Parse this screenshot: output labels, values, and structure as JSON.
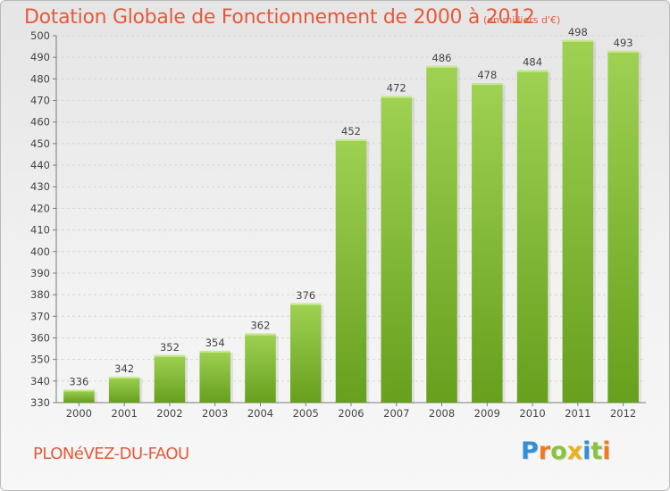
{
  "chart_data": {
    "type": "bar",
    "title": "Dotation Globale de Fonctionnement de 2000 à 2012",
    "unit_label": "(en milliers d'€)",
    "categories": [
      "2000",
      "2001",
      "2002",
      "2003",
      "2004",
      "2005",
      "2006",
      "2007",
      "2008",
      "2009",
      "2010",
      "2011",
      "2012"
    ],
    "values": [
      336,
      342,
      352,
      354,
      362,
      376,
      452,
      472,
      486,
      478,
      484,
      498,
      493
    ],
    "value_labels": [
      "336",
      "342",
      "352",
      "354",
      "362",
      "376",
      "452",
      "472",
      "486",
      "478",
      "484",
      "498",
      "493"
    ],
    "ylim": [
      330,
      500
    ],
    "yticks": [
      "330",
      "340",
      "350",
      "360",
      "370",
      "380",
      "390",
      "400",
      "410",
      "420",
      "430",
      "440",
      "450",
      "460",
      "470",
      "480",
      "490",
      "500"
    ],
    "grid": true,
    "bar_color_light": "#9fd153",
    "bar_color_dark": "#66a01d"
  },
  "footer": {
    "commune": "PLONéVEZ-DU-FAOU",
    "logo_letters": [
      {
        "ch": "P",
        "color": "#2f8fd8"
      },
      {
        "ch": "r",
        "color": "#ee7b1d"
      },
      {
        "ch": "o",
        "color": "#89c43e"
      },
      {
        "ch": "x",
        "color": "#e8b21a"
      },
      {
        "ch": "i",
        "color": "#2f8fd8"
      },
      {
        "ch": "t",
        "color": "#89c43e"
      },
      {
        "ch": "i",
        "color": "#ee7b1d"
      }
    ]
  }
}
